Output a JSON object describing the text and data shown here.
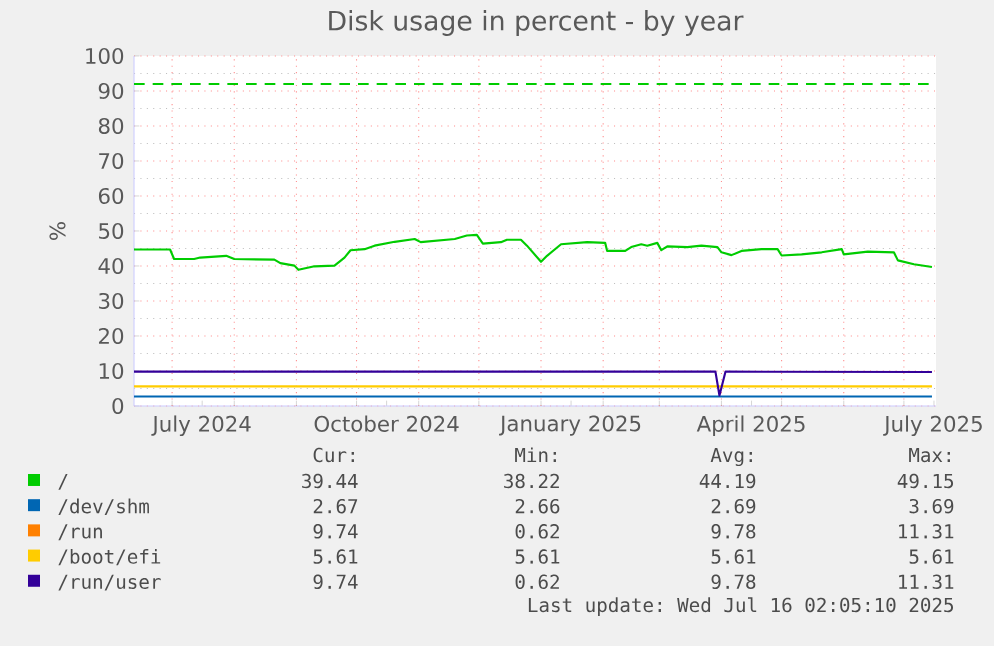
{
  "chart_data": {
    "type": "line",
    "title": "Disk usage in percent - by year",
    "ylabel": "%",
    "xlim": [
      "2024-06-12",
      "2025-07-17"
    ],
    "ylim": [
      0,
      100
    ],
    "yticks": [
      0,
      10,
      20,
      30,
      40,
      50,
      60,
      70,
      80,
      90,
      100
    ],
    "xticks": [
      {
        "value": "2024-07-16",
        "label": "July 2024"
      },
      {
        "value": "2024-10-16",
        "label": "October 2024"
      },
      {
        "value": "2025-01-16",
        "label": "January 2025"
      },
      {
        "value": "2025-04-16",
        "label": "April 2025"
      },
      {
        "value": "2025-07-16",
        "label": "July 2025"
      },
      {
        "value": "2024-07-01",
        "label": null
      },
      {
        "value": "2024-08-01",
        "label": null
      },
      {
        "value": "2024-09-01",
        "label": null
      },
      {
        "value": "2024-10-01",
        "label": null
      },
      {
        "value": "2024-11-01",
        "label": null
      },
      {
        "value": "2024-12-01",
        "label": null
      },
      {
        "value": "2025-01-01",
        "label": null
      },
      {
        "value": "2025-02-01",
        "label": null
      },
      {
        "value": "2025-03-01",
        "label": null
      },
      {
        "value": "2025-04-01",
        "label": null
      },
      {
        "value": "2025-05-01",
        "label": null
      },
      {
        "value": "2025-06-01",
        "label": null
      },
      {
        "value": "2025-07-01",
        "label": null
      }
    ],
    "grid": true,
    "legend": "bottom",
    "ref_lines": [
      {
        "axis": "y",
        "value": 92,
        "color": "#00cc00",
        "line_style": "dashed"
      }
    ],
    "series": [
      {
        "name": "/",
        "color": "#00cc00",
        "x": [
          "2024-06-12",
          "2024-06-30",
          "2024-07-02",
          "2024-07-12",
          "2024-07-15",
          "2024-07-28",
          "2024-08-01",
          "2024-08-21",
          "2024-08-24",
          "2024-08-31",
          "2024-09-02",
          "2024-09-10",
          "2024-09-20",
          "2024-09-25",
          "2024-09-28",
          "2024-10-05",
          "2024-10-10",
          "2024-10-20",
          "2024-10-30",
          "2024-11-02",
          "2024-11-19",
          "2024-11-25",
          "2024-11-30",
          "2024-12-03",
          "2024-12-12",
          "2024-12-15",
          "2024-12-22",
          "2024-12-25",
          "2025-01-01",
          "2025-01-04",
          "2025-01-11",
          "2025-01-24",
          "2025-02-02",
          "2025-02-03",
          "2025-02-12",
          "2025-02-15",
          "2025-02-20",
          "2025-02-23",
          "2025-02-28",
          "2025-03-02",
          "2025-03-05",
          "2025-03-15",
          "2025-03-22",
          "2025-03-30",
          "2025-04-01",
          "2025-04-06",
          "2025-04-11",
          "2025-04-21",
          "2025-04-29",
          "2025-05-01",
          "2025-05-11",
          "2025-05-21",
          "2025-05-31",
          "2025-06-01",
          "2025-06-13",
          "2025-06-26",
          "2025-06-28",
          "2025-07-06",
          "2025-07-15"
        ],
        "values": [
          44.7,
          44.7,
          42.0,
          42.0,
          42.4,
          42.9,
          42.0,
          41.8,
          40.8,
          40.1,
          38.9,
          39.9,
          40.1,
          42.4,
          44.5,
          44.8,
          45.8,
          46.9,
          47.7,
          46.8,
          47.7,
          48.7,
          48.9,
          46.4,
          46.8,
          47.5,
          47.5,
          45.8,
          41.2,
          42.9,
          46.2,
          46.8,
          46.6,
          44.3,
          44.3,
          45.4,
          46.2,
          45.8,
          46.6,
          44.5,
          45.6,
          45.4,
          45.8,
          45.4,
          43.9,
          43.1,
          44.3,
          44.8,
          44.8,
          43.0,
          43.3,
          43.9,
          44.8,
          43.3,
          44.1,
          43.9,
          41.6,
          40.5,
          39.7
        ]
      },
      {
        "name": "/dev/shm",
        "color": "#0066b3",
        "x": [
          "2024-06-12",
          "2025-07-15"
        ],
        "values": [
          2.7,
          2.7
        ]
      },
      {
        "name": "/run",
        "color": "#ff8000",
        "values": [
          null
        ]
      },
      {
        "name": "/boot/efi",
        "color": "#ffcc00",
        "x": [
          "2024-06-12",
          "2025-07-15"
        ],
        "values": [
          5.6,
          5.6
        ]
      },
      {
        "name": "/run/user",
        "color": "#330099",
        "x": [
          "2024-06-12",
          "2025-03-29",
          "2025-03-31",
          "2025-04-03",
          "2025-07-15"
        ],
        "values": [
          9.8,
          9.8,
          3.0,
          9.8,
          9.7
        ]
      }
    ],
    "annotations": [
      "Cur:",
      "Min:",
      "Avg:",
      "Max:",
      "39.44",
      "38.22",
      "44.19",
      "49.15",
      "2.67",
      "2.66",
      "2.69",
      "3.69",
      "9.74",
      "0.62",
      "9.78",
      "11.31",
      "5.61",
      "5.61",
      "5.61",
      "5.61",
      "9.74",
      "0.62",
      "9.78",
      "11.31",
      "Last update: Wed Jul 16 02:05:10 2025"
    ]
  }
}
